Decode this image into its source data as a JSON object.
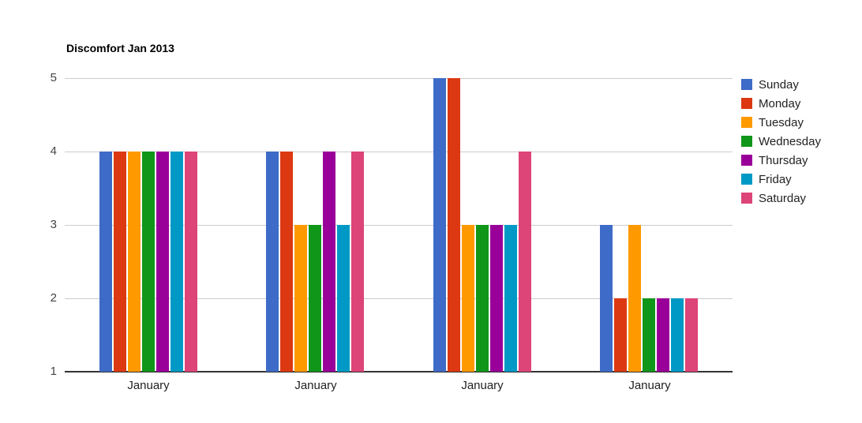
{
  "chart_data": {
    "type": "bar",
    "title": "Discomfort Jan 2013",
    "categories": [
      "January",
      "January",
      "January",
      "January"
    ],
    "series": [
      {
        "name": "Sunday",
        "color": "#3D6BC7",
        "values": [
          4,
          4,
          5,
          3
        ]
      },
      {
        "name": "Monday",
        "color": "#DC3912",
        "values": [
          4,
          4,
          5,
          2
        ]
      },
      {
        "name": "Tuesday",
        "color": "#FF9900",
        "values": [
          4,
          3,
          3,
          3
        ]
      },
      {
        "name": "Wednesday",
        "color": "#109618",
        "values": [
          4,
          3,
          3,
          2
        ]
      },
      {
        "name": "Thursday",
        "color": "#990099",
        "values": [
          4,
          4,
          3,
          2
        ]
      },
      {
        "name": "Friday",
        "color": "#0099C6",
        "values": [
          4,
          3,
          3,
          2
        ]
      },
      {
        "name": "Saturday",
        "color": "#DD4477",
        "values": [
          4,
          4,
          4,
          2
        ]
      }
    ],
    "xlabel": "",
    "ylabel": "",
    "ylim": [
      1,
      5
    ],
    "yticks": [
      1,
      2,
      3,
      4,
      5
    ],
    "grid": true,
    "legend_position": "right",
    "colors": {
      "gridline": "#cccccc",
      "baseline": "#333333",
      "y_tick_label": "#444444",
      "category_label": "#222222",
      "legend_label": "#222222",
      "title": "#000000",
      "background": "#ffffff"
    }
  }
}
